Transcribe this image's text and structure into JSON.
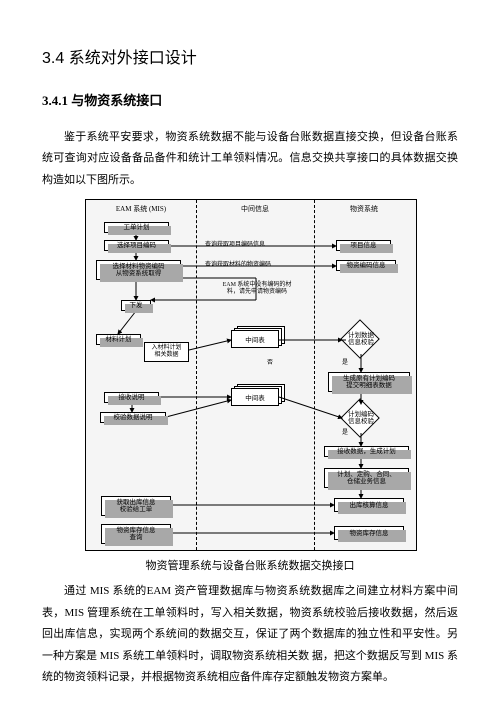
{
  "heading1": "3.4  系统对外接口设计",
  "heading2": "3.4.1  与物资系统接口",
  "para1": "鉴于系统平安要求，物资系统数据不能与设备台账数据直接交换，但设备台账系统可查询对应设备备品备件和统计工单领料情况。信息交换共享接口的具体数据交换构造如以下图所示。",
  "caption": "物资管理系统与设备台账系统数据交换接口",
  "para2": "通过 MIS 系统的EAM 资产管理数据库与物资系统数据库之间建立材料方案中间表，MIS 管理系统在工单领料时，写入相关数据，物资系统校验后接收数据，然后返回出库信息，实现两个系统间的数据交互，保证了两个数据库的独立性和平安性。另一种方案是 MIS 系统工单领料时，调取物资系统相关数  据，把这个数据反写到 MIS 系统的物资领料记录，并根据物资系统相应备件库存定额触发物资方案单。",
  "figure": {
    "col1_title": "EAM 系统 (MIS)",
    "col2_title": "中间信息",
    "col3_title": "物资系统",
    "c1_b1": "工单计划",
    "c1_b2": "选择项目编码",
    "c1_b3": "选择材料物资编码\n从物资系统取得",
    "c1_b4": "下发",
    "c1_b5": "材料计划",
    "c1_b5b": "入材料计划\n相关数据",
    "c1_b6": "接收说明",
    "c1_b7": "校验数据说明",
    "c1_b8": "获取出库信息\n校验给工单",
    "c1_b9": "物资库存信息\n查询",
    "c2_lbl1": "查询获取项目编码信息",
    "c2_lbl2": "查询获取材料的物资编码",
    "c2_lbl3": "EAM 系统中没有编码的材\n料，请先申请物资编码",
    "c2_mid1": "中间表",
    "c2_mid2": "中间表",
    "c2_diam_no": "否",
    "c2_diam_yes": "是",
    "c3_b1": "项目信息",
    "c3_b2": "物资编码信息",
    "c3_d1": "计划数据\n信息校验",
    "c3_b3": "生成原有计划编码\n提交明细表数据",
    "c3_d2": "计划编码\n信息校验",
    "c3_b4": "接收数据，生成计划",
    "c3_b5": "计划、定购、合同、\n仓储业务信息",
    "c3_b6": "出库核算信息",
    "c3_b7": "物资库存信息"
  }
}
